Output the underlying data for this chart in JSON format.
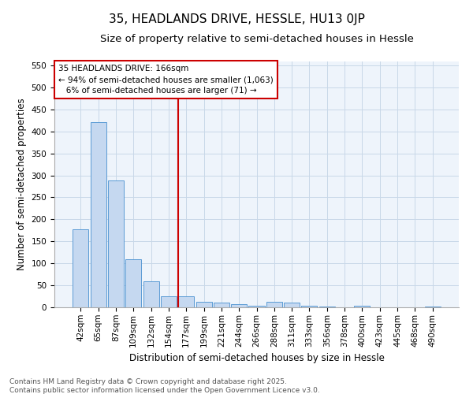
{
  "title_line1": "35, HEADLANDS DRIVE, HESSLE, HU13 0JP",
  "title_line2": "Size of property relative to semi-detached houses in Hessle",
  "xlabel": "Distribution of semi-detached houses by size in Hessle",
  "ylabel": "Number of semi-detached properties",
  "categories": [
    "42sqm",
    "65sqm",
    "87sqm",
    "109sqm",
    "132sqm",
    "154sqm",
    "177sqm",
    "199sqm",
    "221sqm",
    "244sqm",
    "266sqm",
    "288sqm",
    "311sqm",
    "333sqm",
    "356sqm",
    "378sqm",
    "400sqm",
    "423sqm",
    "445sqm",
    "468sqm",
    "490sqm"
  ],
  "values": [
    178,
    422,
    288,
    110,
    60,
    25,
    25,
    13,
    10,
    7,
    4,
    12,
    11,
    4,
    2,
    0,
    3,
    0,
    0,
    0,
    1
  ],
  "bar_color": "#c5d8f0",
  "bar_edge_color": "#5b9bd5",
  "vline_index": 6,
  "vline_color": "#cc0000",
  "annotation_line1": "35 HEADLANDS DRIVE: 166sqm",
  "annotation_line2": "← 94% of semi-detached houses are smaller (1,063)",
  "annotation_line3": "   6% of semi-detached houses are larger (71) →",
  "annotation_box_color": "#ffffff",
  "annotation_box_edge": "#cc0000",
  "ylim": [
    0,
    560
  ],
  "yticks": [
    0,
    50,
    100,
    150,
    200,
    250,
    300,
    350,
    400,
    450,
    500,
    550
  ],
  "grid_color": "#c8d8e8",
  "background_color": "#eef4fb",
  "footer_line1": "Contains HM Land Registry data © Crown copyright and database right 2025.",
  "footer_line2": "Contains public sector information licensed under the Open Government Licence v3.0.",
  "title_fontsize": 11,
  "subtitle_fontsize": 9.5,
  "axis_label_fontsize": 8.5,
  "tick_fontsize": 7.5,
  "annot_fontsize": 7.5,
  "footer_fontsize": 6.5
}
